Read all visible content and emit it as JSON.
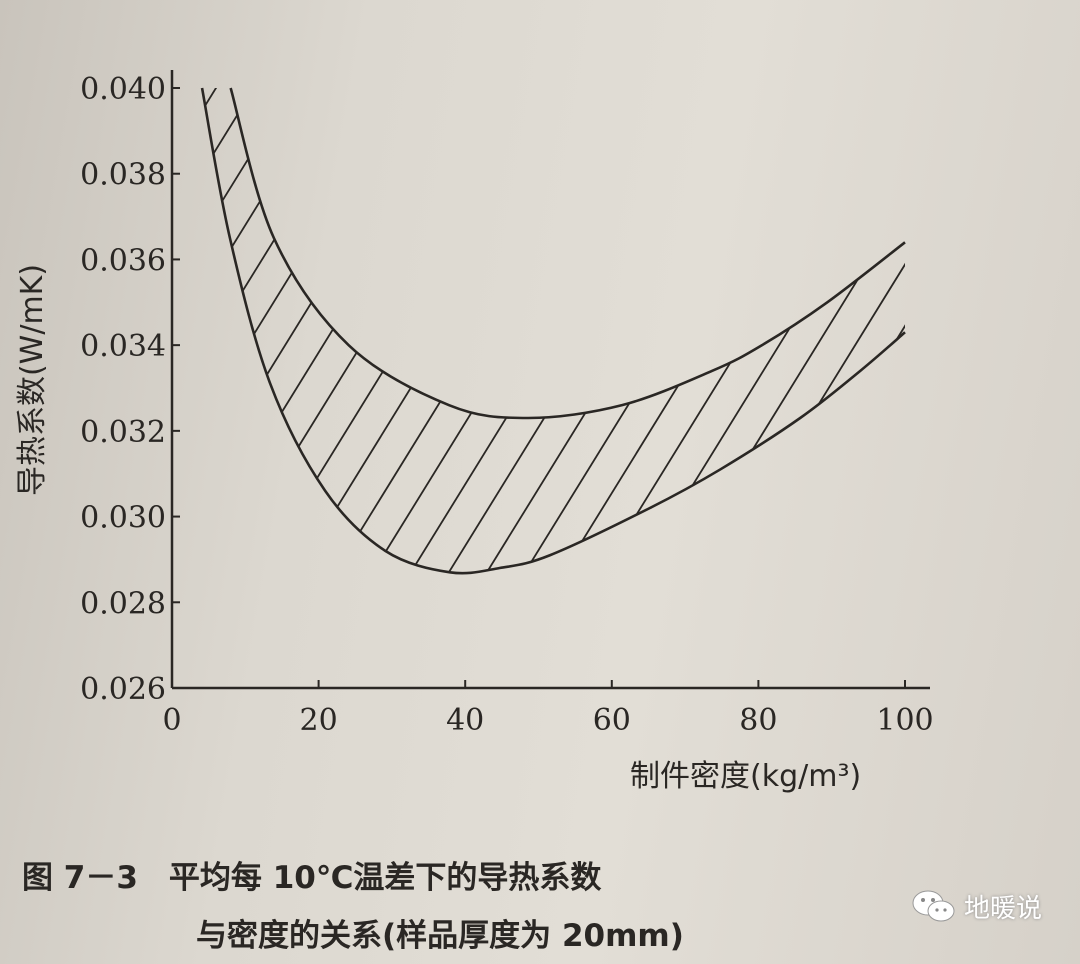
{
  "chart_data": {
    "type": "area",
    "description_free": true,
    "xlabel": "制件密度(kg/m³)",
    "ylabel": "导热系数(W/mK)",
    "xlim": [
      0,
      100
    ],
    "ylim": [
      0.026,
      0.04
    ],
    "xticks": [
      "0",
      "20",
      "40",
      "60",
      "80",
      "100"
    ],
    "yticks": [
      "0.040",
      "0.038",
      "0.036",
      "0.034",
      "0.032",
      "0.030",
      "0.028",
      "0.026"
    ],
    "grid": false,
    "fill": "hatched band between upper and lower curves",
    "series": [
      {
        "x": [
          8,
          13.9,
          24.1,
          37.8,
          48.6,
          61.4,
          73.7,
          80.5,
          89.4,
          100
        ],
        "y": [
          0.04,
          0.0365,
          0.034,
          0.0326,
          0.0323,
          0.0326,
          0.0334,
          0.034,
          0.035,
          0.0364
        ]
      },
      {
        "x": [
          4.1,
          7.9,
          13.4,
          20.9,
          29.1,
          37.9,
          44.7,
          51.6,
          65.2,
          74.8,
          85.7,
          93.9,
          100
        ],
        "y": [
          0.04,
          0.0365,
          0.0331,
          0.0306,
          0.0292,
          0.0287,
          0.0288,
          0.0291,
          0.0302,
          0.0311,
          0.0323,
          0.0334,
          0.0343
        ]
      }
    ]
  },
  "caption": {
    "line1": "图 7－3　平均每 10℃温差下的导热系数",
    "line2": "与密度的关系(样品厚度为 20mm)"
  },
  "watermark": {
    "text": "地暖说",
    "icon": "wechat-icon"
  }
}
